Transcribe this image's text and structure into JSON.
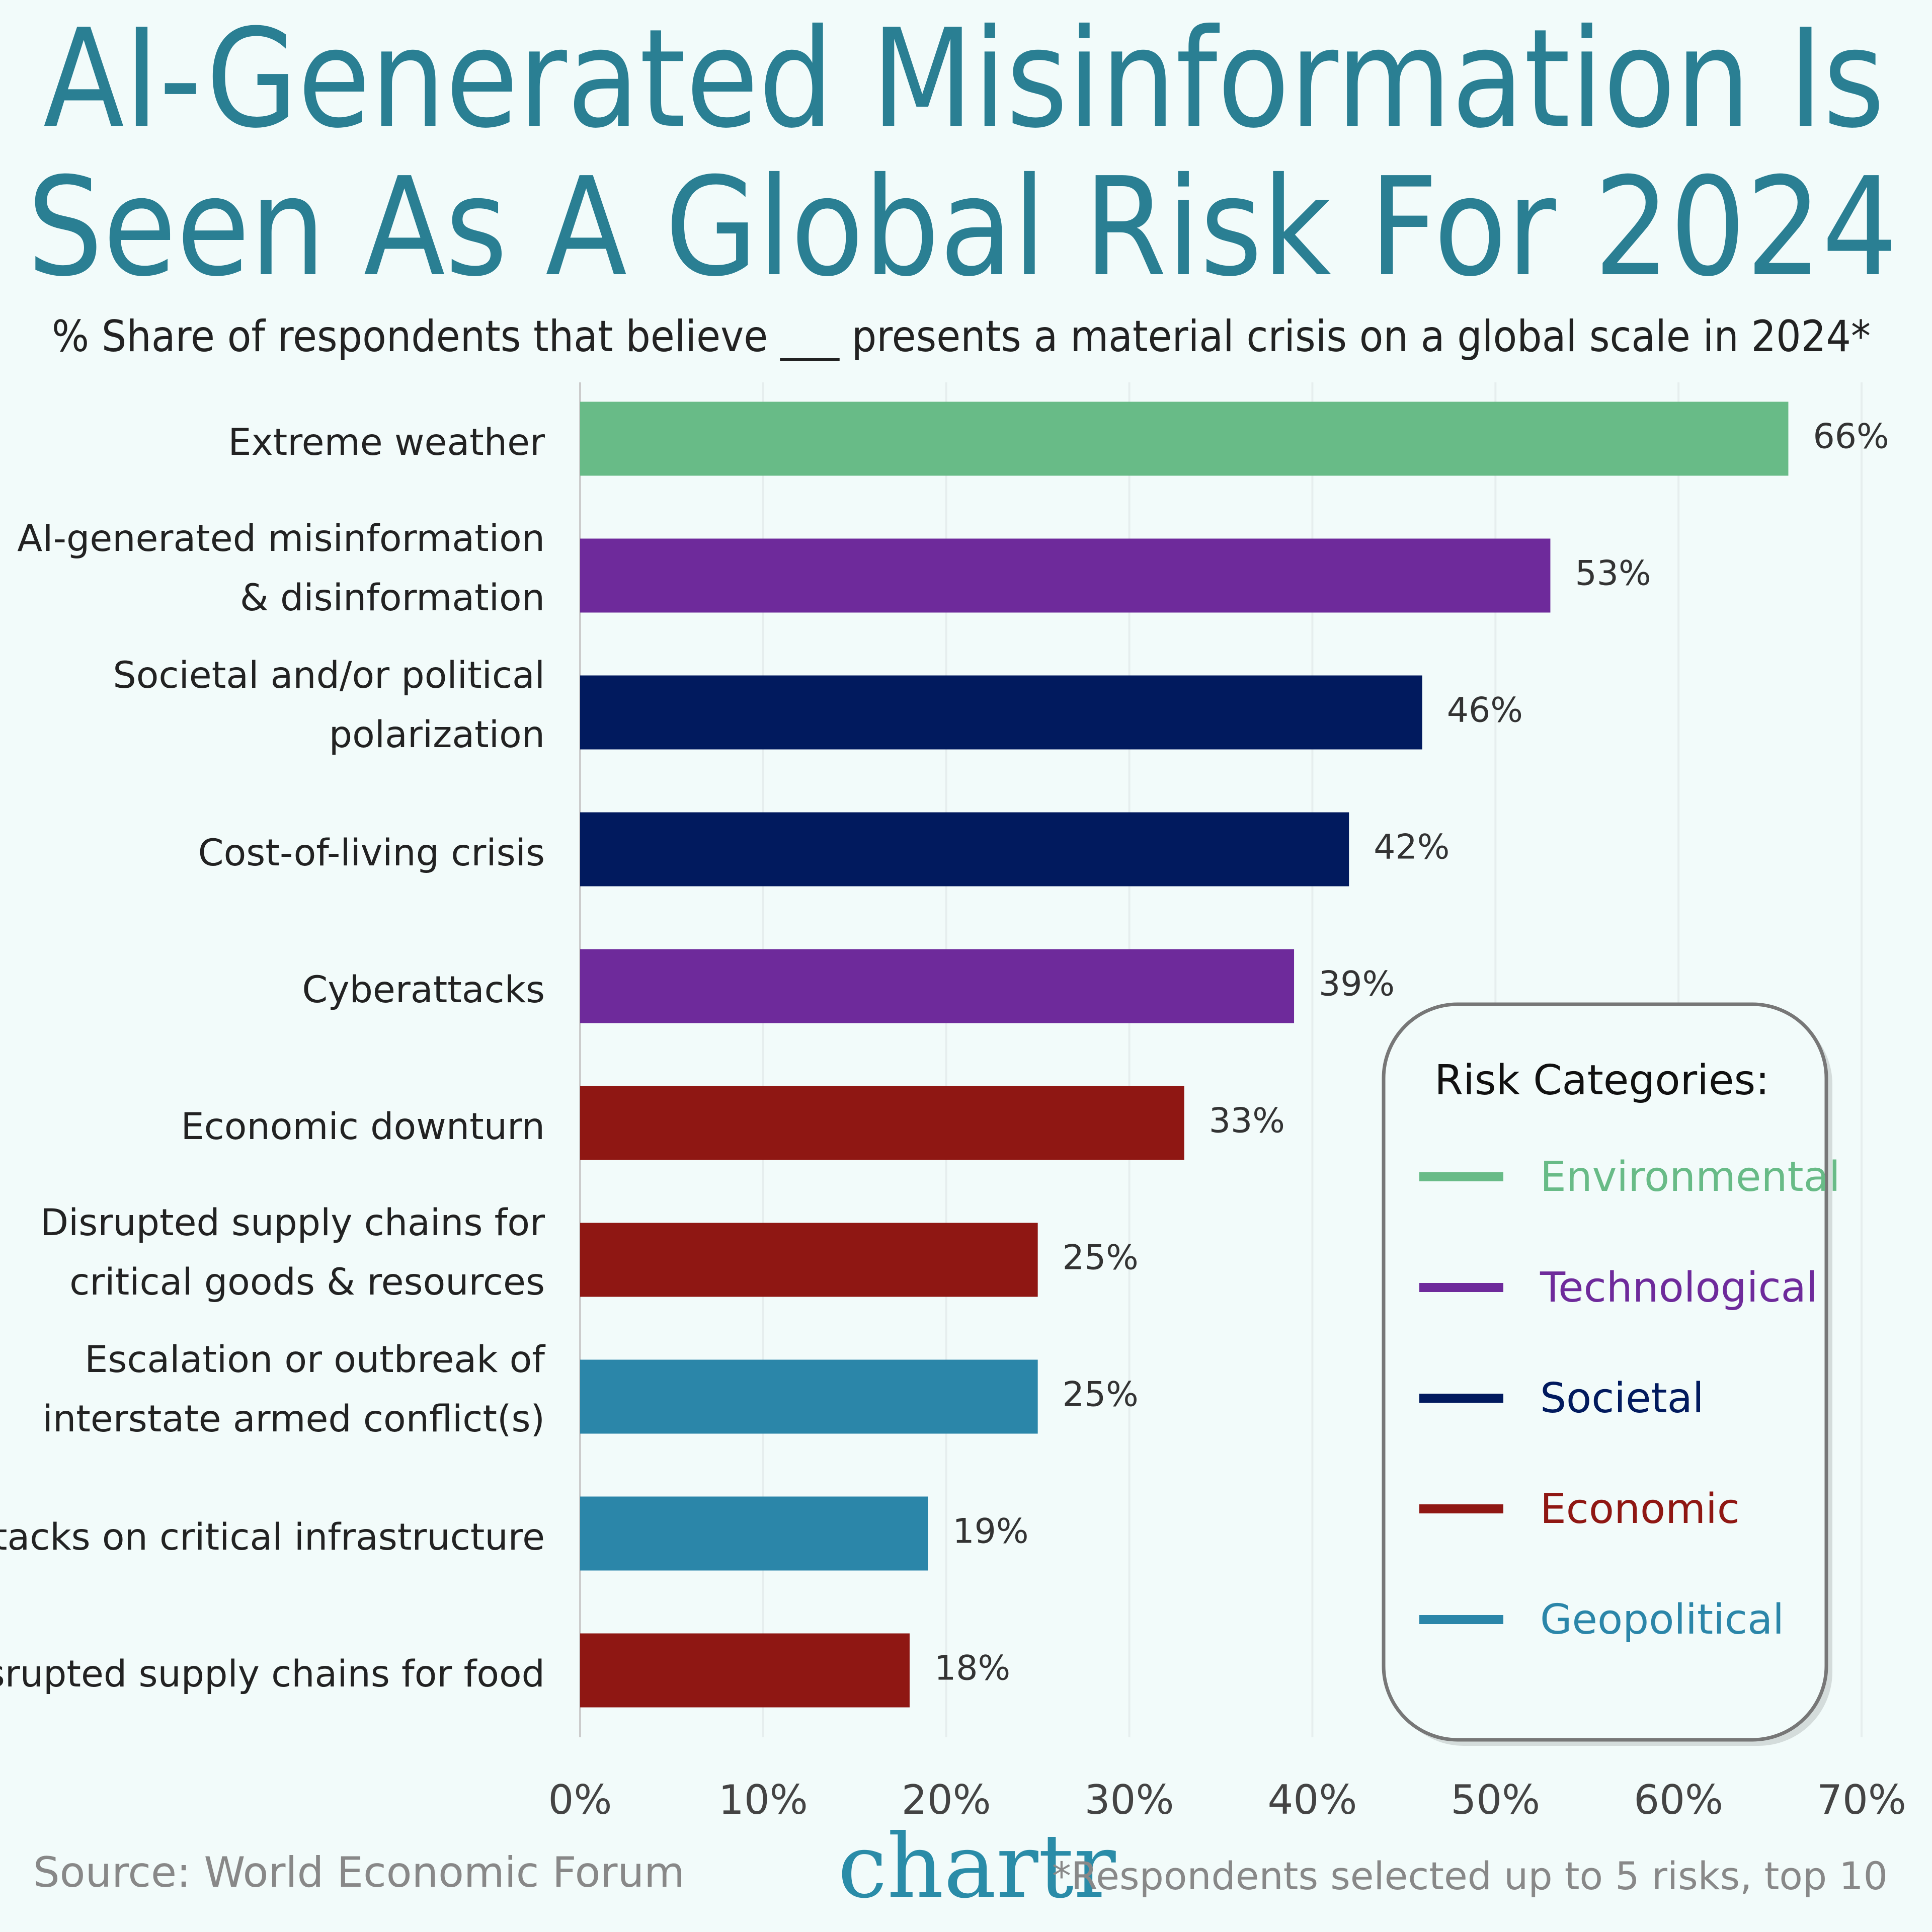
{
  "chart_data": {
    "type": "bar",
    "orientation": "horizontal",
    "title": "AI-Generated Misinformation Is\nSeen As A Global Risk For 2024",
    "subtitle": "% Share of respondents that believe ___ presents a material crisis on a global scale in 2024*",
    "categories": [
      "Extreme weather",
      "AI-generated misinformation\n& disinformation",
      "Societal and/or political\npolarization",
      "Cost-of-living crisis",
      "Cyberattacks",
      "Economic downturn",
      "Disrupted supply chains for\ncritical goods & resources",
      "Escalation or outbreak of\ninterstate armed conflict(s)",
      "Attacks on critical infrastructure",
      "Disrupted supply chains for food"
    ],
    "values": [
      66,
      53,
      46,
      42,
      39,
      33,
      25,
      25,
      19,
      18
    ],
    "value_labels": [
      "66%",
      "53%",
      "46%",
      "42%",
      "39%",
      "33%",
      "25%",
      "25%",
      "19%",
      "18%"
    ],
    "colors": [
      "#68bb87",
      "#6e2a9b",
      "#011a5e",
      "#011a5e",
      "#6e2a9b",
      "#8f1713",
      "#8f1713",
      "#2b86a9",
      "#2b86a9",
      "#8f1713"
    ],
    "xlim": [
      0,
      70
    ],
    "xticks": [
      {
        "value": 0,
        "label": "0%"
      },
      {
        "value": 10,
        "label": "10%"
      },
      {
        "value": 20,
        "label": "20%"
      },
      {
        "value": 30,
        "label": "30%"
      },
      {
        "value": 40,
        "label": "40%"
      },
      {
        "value": 50,
        "label": "50%"
      },
      {
        "value": 60,
        "label": "60%"
      },
      {
        "value": 70,
        "label": "70%"
      }
    ],
    "grid": true,
    "legend": {
      "title": "Risk Categories:",
      "position": "lower right",
      "items": [
        {
          "name": "Environmental",
          "color": "#68bb87"
        },
        {
          "name": "Technological",
          "color": "#6e2a9b"
        },
        {
          "name": "Societal",
          "color": "#011a5e"
        },
        {
          "name": "Economic",
          "color": "#8f1713"
        },
        {
          "name": "Geopolitical",
          "color": "#2b86a9"
        }
      ]
    },
    "source": "Source: World Economic Forum",
    "logo": "chartr",
    "note": "*Respondents selected up to 5 risks, top 10"
  }
}
